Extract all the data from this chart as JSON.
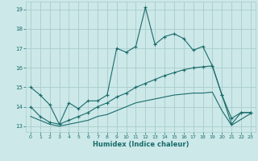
{
  "xlabel": "Humidex (Indice chaleur)",
  "ylabel": "",
  "bg_color": "#cce8e8",
  "line_color": "#1a6b6b",
  "grid_color": "#aacccc",
  "xlim": [
    -0.5,
    23.5
  ],
  "ylim": [
    12.7,
    19.4
  ],
  "xticks": [
    0,
    1,
    2,
    3,
    4,
    5,
    6,
    7,
    8,
    9,
    10,
    11,
    12,
    13,
    14,
    15,
    16,
    17,
    18,
    19,
    20,
    21,
    22,
    23
  ],
  "yticks": [
    13,
    14,
    15,
    16,
    17,
    18,
    19
  ],
  "line1": [
    15.0,
    14.6,
    14.1,
    13.1,
    14.2,
    13.9,
    14.3,
    14.3,
    14.6,
    17.0,
    16.8,
    17.1,
    19.1,
    17.2,
    17.6,
    17.75,
    17.5,
    16.9,
    17.1,
    16.1,
    14.6,
    13.1,
    13.7,
    13.7
  ],
  "line2": [
    14.0,
    13.5,
    13.2,
    13.1,
    13.3,
    13.5,
    13.7,
    14.0,
    14.2,
    14.5,
    14.7,
    15.0,
    15.2,
    15.4,
    15.6,
    15.75,
    15.9,
    16.0,
    16.05,
    16.1,
    14.6,
    13.4,
    13.7,
    13.7
  ],
  "line3": [
    13.5,
    13.3,
    13.1,
    13.0,
    13.1,
    13.2,
    13.3,
    13.5,
    13.6,
    13.8,
    14.0,
    14.2,
    14.3,
    14.4,
    14.5,
    14.6,
    14.65,
    14.7,
    14.7,
    14.75,
    13.8,
    13.05,
    13.35,
    13.65
  ]
}
